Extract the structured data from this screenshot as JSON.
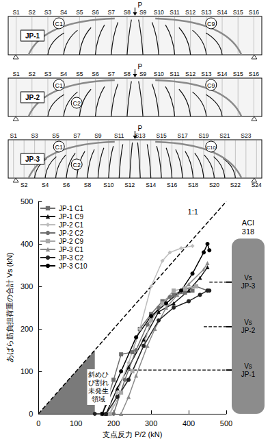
{
  "beams": [
    {
      "label": "JP-1",
      "stirrups_top": [
        "S1",
        "S2",
        "S3",
        "S4",
        "S5",
        "S6",
        "S7",
        "S8",
        "S9",
        "S10",
        "S11",
        "S12",
        "S13",
        "S14",
        "S15",
        "S16"
      ],
      "stirrups_bottom": [],
      "cracks": [
        {
          "label": "C1",
          "side": "left"
        },
        {
          "label": "C9",
          "side": "right"
        }
      ]
    },
    {
      "label": "JP-2",
      "stirrups_top": [
        "S1",
        "S2",
        "S3",
        "S4",
        "S5",
        "S6",
        "S7",
        "S8",
        "S9",
        "S10",
        "S11",
        "S12",
        "S13",
        "S14",
        "S15",
        "S16"
      ],
      "stirrups_bottom": [],
      "cracks": [
        {
          "label": "C1",
          "side": "left"
        },
        {
          "label": "C2",
          "side": "left"
        },
        {
          "label": "C9",
          "side": "right"
        }
      ]
    },
    {
      "label": "JP-3",
      "stirrups_top": [
        "S1",
        "S3",
        "S5",
        "S7",
        "S9",
        "S11",
        "S13",
        "S15",
        "S17",
        "S19",
        "S21",
        "S23"
      ],
      "stirrups_bottom": [
        "S2",
        "S4",
        "S6",
        "S8",
        "S10",
        "S12",
        "S14",
        "S16",
        "S18",
        "S20",
        "S22",
        "S24"
      ],
      "cracks": [
        {
          "label": "C1",
          "side": "left"
        },
        {
          "label": "C2",
          "side": "left"
        },
        {
          "label": "C10",
          "side": "right"
        }
      ]
    }
  ],
  "load_label": "P",
  "chart_data": {
    "type": "line",
    "x_label": "支点反力 P/2 (kN)",
    "y_label": "あばら筋負担荷重の合計 Vs (kN)",
    "xlim": [
      0,
      500
    ],
    "xticks": [
      0,
      100,
      200,
      300,
      400,
      500
    ],
    "ylim": [
      0,
      500
    ],
    "yticks": [
      0,
      100,
      200,
      300,
      400,
      500
    ],
    "grid": false,
    "legend": "upper left",
    "line_style": "solid",
    "series": [
      {
        "name": "JP-1 C1",
        "color": "#6e6e6e",
        "marker": "square",
        "x": [
          170,
          200,
          220,
          250,
          270,
          300,
          330,
          360,
          390,
          410
        ],
        "values": [
          0,
          80,
          140,
          145,
          200,
          235,
          265,
          280,
          285,
          290
        ]
      },
      {
        "name": "JP-1 C9",
        "color": "#111111",
        "marker": "triangle",
        "x": [
          180,
          210,
          240,
          280,
          320,
          360,
          400,
          430,
          450
        ],
        "values": [
          0,
          60,
          110,
          175,
          240,
          260,
          290,
          320,
          345
        ]
      },
      {
        "name": "JP-2 C1",
        "color": "#bdbdbd",
        "marker": "diamond",
        "x": [
          190,
          210,
          240,
          270,
          300,
          330,
          350,
          380,
          410
        ],
        "values": [
          0,
          50,
          120,
          200,
          300,
          360,
          380,
          390,
          395
        ]
      },
      {
        "name": "JP-2 C2",
        "color": "#6e6e6e",
        "marker": "circle",
        "x": [
          200,
          230,
          260,
          290,
          320,
          350,
          380,
          420,
          450
        ],
        "values": [
          0,
          80,
          150,
          210,
          250,
          275,
          290,
          300,
          290
        ]
      },
      {
        "name": "JP-2 C9",
        "color": "#a8a8a8",
        "marker": "square",
        "x": [
          190,
          220,
          250,
          280,
          300,
          330,
          360,
          390,
          420
        ],
        "values": [
          0,
          50,
          100,
          160,
          220,
          260,
          290,
          295,
          300
        ]
      },
      {
        "name": "JP-3 C1",
        "color": "#8a8a8a",
        "marker": "triangle",
        "x": [
          220,
          240,
          260,
          290,
          310,
          340,
          370,
          400,
          440,
          450
        ],
        "values": [
          0,
          40,
          90,
          160,
          200,
          250,
          280,
          305,
          340,
          355
        ]
      },
      {
        "name": "JP-3 C2",
        "color": "#222222",
        "marker": "circle",
        "x": [
          150,
          180,
          210,
          240,
          280,
          320,
          360,
          400,
          430,
          450,
          455
        ],
        "values": [
          0,
          0,
          40,
          80,
          160,
          220,
          250,
          265,
          280,
          290,
          290
        ]
      },
      {
        "name": "JP-3 C10",
        "color": "#000000",
        "marker": "circle",
        "x": [
          170,
          220,
          260,
          300,
          340,
          380,
          410,
          440,
          450,
          455
        ],
        "values": [
          0,
          100,
          180,
          230,
          260,
          290,
          330,
          380,
          400,
          385
        ]
      }
    ],
    "reference_line": {
      "label": "1:1",
      "x": [
        0,
        500
      ],
      "y": [
        0,
        500
      ],
      "line_style": "dashed"
    },
    "region": {
      "label": "斜めひび割れ未発生領域",
      "x": [
        0,
        150,
        150
      ],
      "y": [
        0,
        150,
        0
      ],
      "color": "#7a7a7a"
    },
    "aci": {
      "title": "ACI 318",
      "color": "#8c8c8c",
      "levels": [
        {
          "label": "Vs JP-3",
          "value": 310,
          "x_start": 455
        },
        {
          "label": "Vs JP-2",
          "value": 205,
          "x_start": 440
        },
        {
          "label": "Vs JP-1",
          "value": 103,
          "x_start": 240
        }
      ]
    }
  }
}
